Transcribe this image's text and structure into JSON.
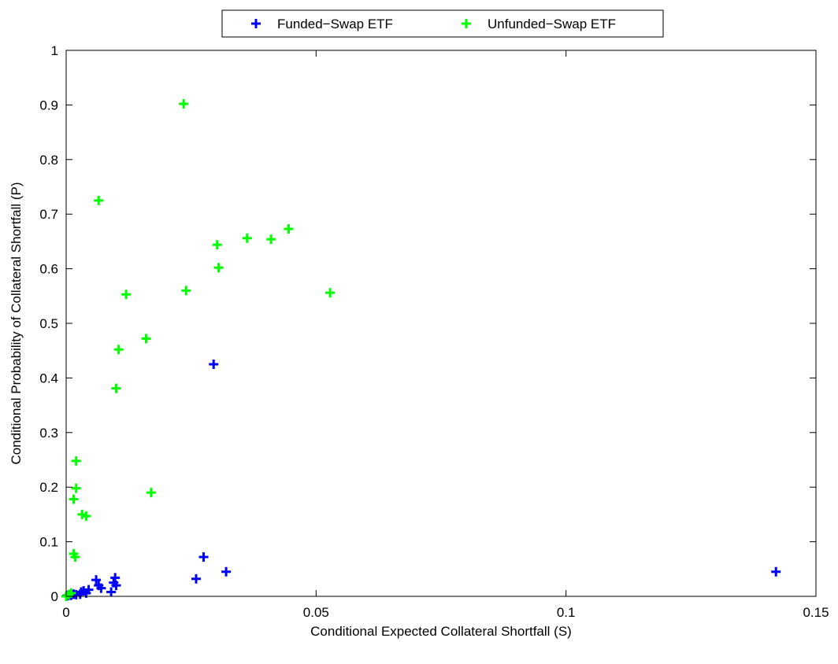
{
  "chart_data": {
    "type": "scatter",
    "title": "",
    "xlabel": "Conditional Expected Collateral Shortfall (S)",
    "ylabel": "Conditional Probability of Collateral Shortfall (P)",
    "xlim": [
      0,
      0.15
    ],
    "ylim": [
      0,
      1
    ],
    "xticks": [
      0,
      0.05,
      0.1,
      0.15
    ],
    "xtick_labels": [
      "0",
      "0.05",
      "0.1",
      "0.15"
    ],
    "yticks": [
      0,
      0.1,
      0.2,
      0.3,
      0.4,
      0.5,
      0.6,
      0.7,
      0.8,
      0.9,
      1
    ],
    "ytick_labels": [
      "0",
      "0.1",
      "0.2",
      "0.3",
      "0.4",
      "0.5",
      "0.6",
      "0.7",
      "0.8",
      "0.9",
      "1"
    ],
    "grid": false,
    "legend_position": "top-center",
    "marker": "plus",
    "series": [
      {
        "name": "Funded−Swap ETF",
        "color": "#0000ff",
        "points": [
          [
            0.0002,
            0.001
          ],
          [
            0.0005,
            0.002
          ],
          [
            0.0008,
            0.003
          ],
          [
            0.001,
            0.002
          ],
          [
            0.0015,
            0.004
          ],
          [
            0.002,
            0.003
          ],
          [
            0.0028,
            0.004
          ],
          [
            0.003,
            0.008
          ],
          [
            0.0035,
            0.01
          ],
          [
            0.004,
            0.006
          ],
          [
            0.0045,
            0.012
          ],
          [
            0.006,
            0.03
          ],
          [
            0.0065,
            0.02
          ],
          [
            0.007,
            0.015
          ],
          [
            0.009,
            0.008
          ],
          [
            0.0095,
            0.025
          ],
          [
            0.01,
            0.02
          ],
          [
            0.0098,
            0.034
          ],
          [
            0.026,
            0.032
          ],
          [
            0.0275,
            0.072
          ],
          [
            0.0295,
            0.425
          ],
          [
            0.032,
            0.045
          ],
          [
            0.142,
            0.045
          ]
        ]
      },
      {
        "name": "Unfunded−Swap ETF",
        "color": "#00ff00",
        "points": [
          [
            0.0,
            0.0
          ],
          [
            0.0005,
            0.003
          ],
          [
            0.001,
            0.006
          ],
          [
            0.0015,
            0.078
          ],
          [
            0.0018,
            0.072
          ],
          [
            0.0015,
            0.178
          ],
          [
            0.002,
            0.198
          ],
          [
            0.002,
            0.248
          ],
          [
            0.0032,
            0.15
          ],
          [
            0.004,
            0.147
          ],
          [
            0.0065,
            0.725
          ],
          [
            0.01,
            0.381
          ],
          [
            0.0105,
            0.452
          ],
          [
            0.012,
            0.553
          ],
          [
            0.016,
            0.472
          ],
          [
            0.017,
            0.19
          ],
          [
            0.0235,
            0.902
          ],
          [
            0.024,
            0.56
          ],
          [
            0.0302,
            0.644
          ],
          [
            0.0305,
            0.602
          ],
          [
            0.0362,
            0.656
          ],
          [
            0.041,
            0.654
          ],
          [
            0.0445,
            0.673
          ],
          [
            0.0528,
            0.556
          ]
        ]
      }
    ]
  }
}
